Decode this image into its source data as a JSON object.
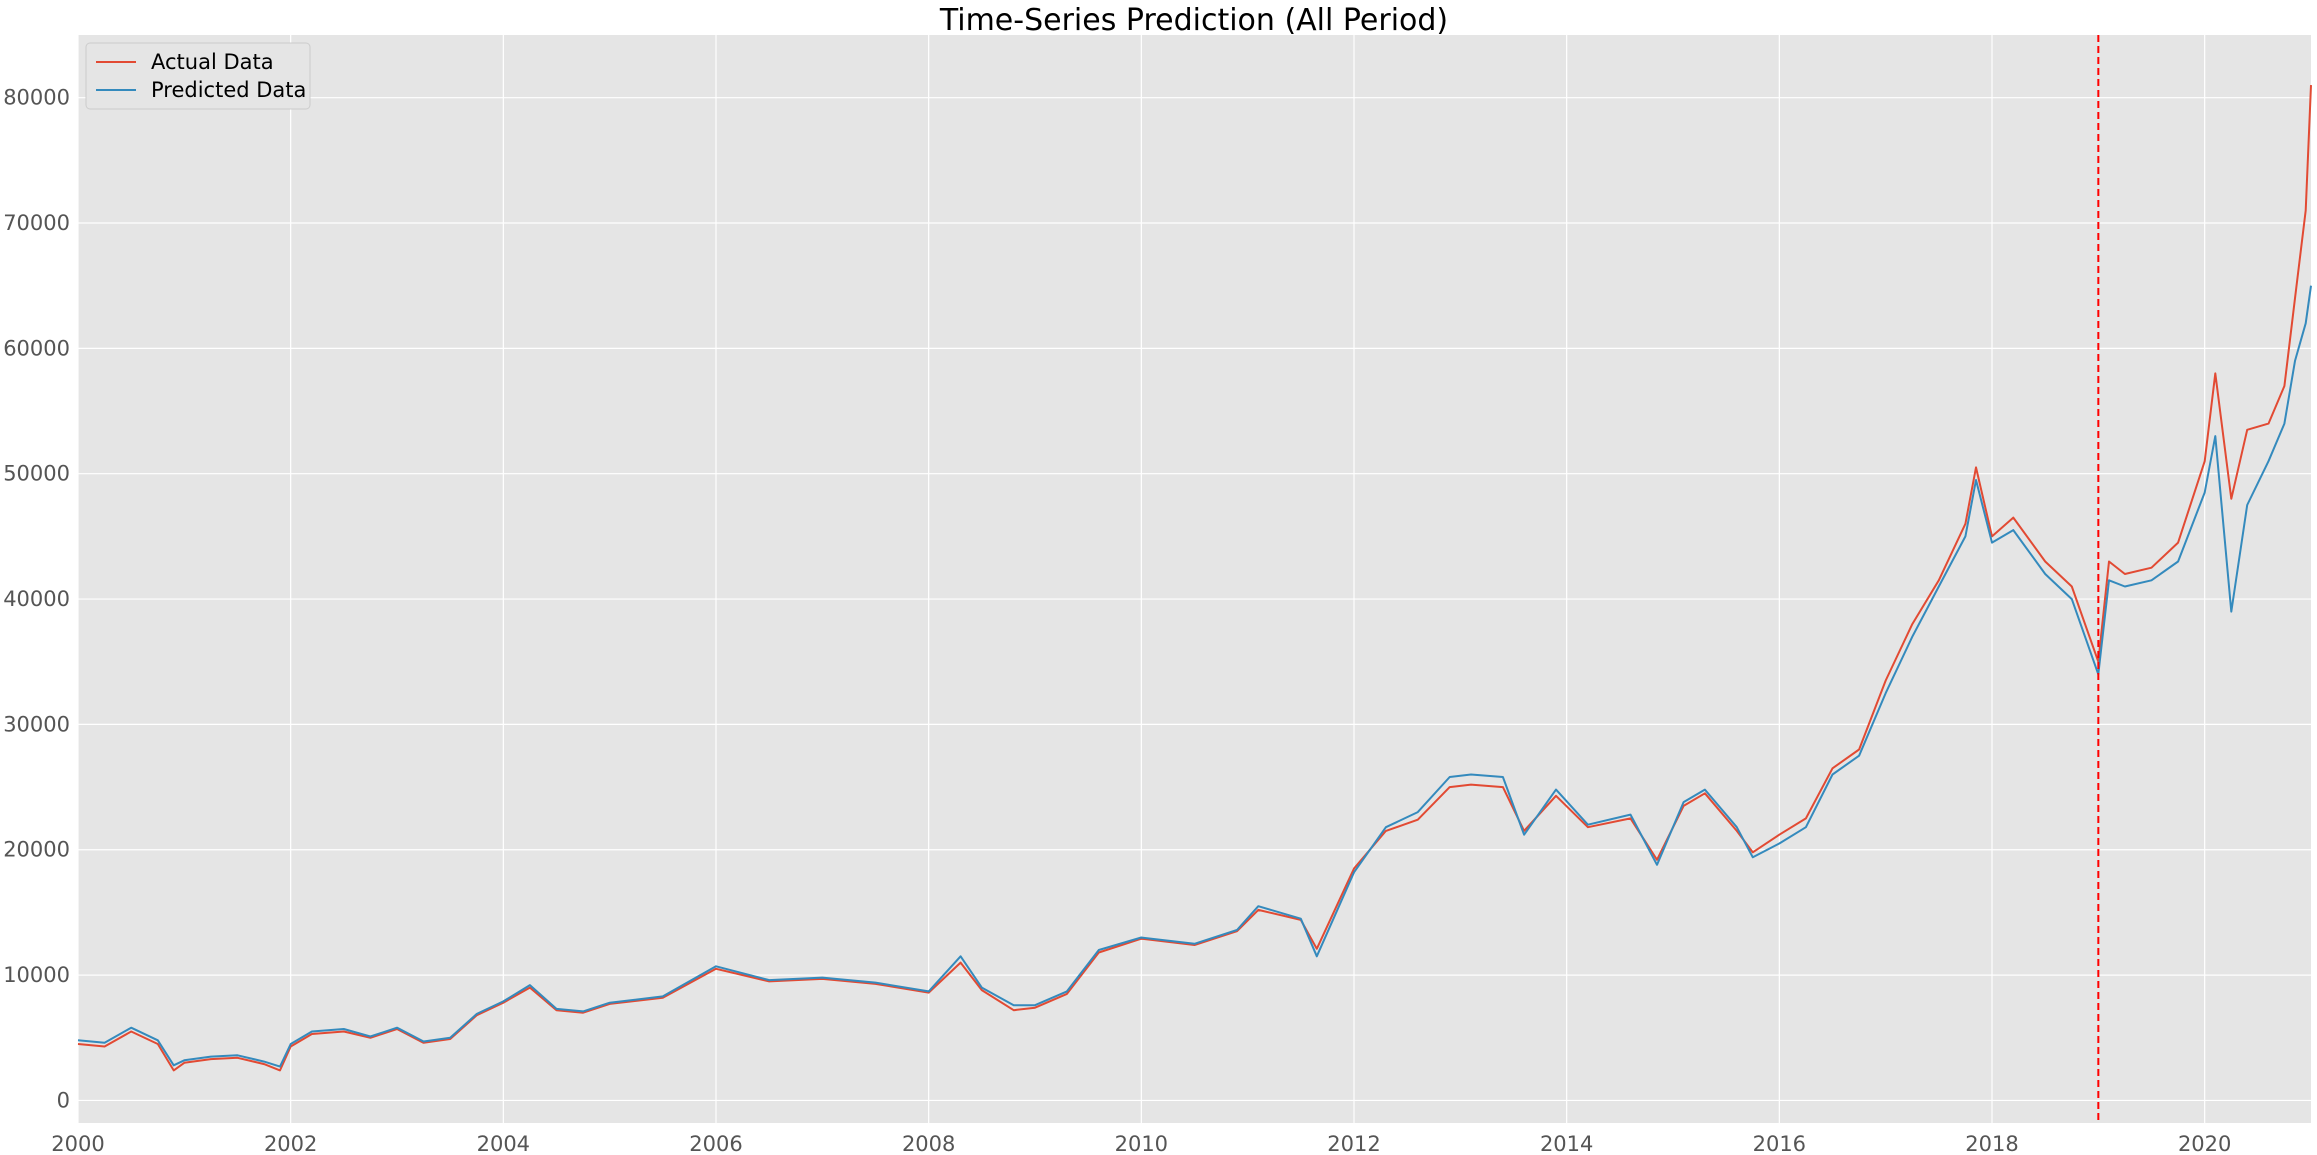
{
  "chart_data": {
    "type": "line",
    "title": "Time-Series Prediction (All Period)",
    "xlabel": "",
    "ylabel": "",
    "xlim": [
      2000,
      2021.0
    ],
    "ylim": [
      -1800,
      85000
    ],
    "x_ticks": [
      2000,
      2002,
      2004,
      2006,
      2008,
      2010,
      2012,
      2014,
      2016,
      2018,
      2020
    ],
    "x_tick_labels": [
      "2000",
      "2002",
      "2004",
      "2006",
      "2008",
      "2010",
      "2012",
      "2014",
      "2016",
      "2018",
      "2020"
    ],
    "y_ticks": [
      0,
      10000,
      20000,
      30000,
      40000,
      50000,
      60000,
      70000,
      80000
    ],
    "y_tick_labels": [
      "0",
      "10000",
      "20000",
      "30000",
      "40000",
      "50000",
      "60000",
      "70000",
      "80000"
    ],
    "grid": true,
    "legend_position": "top-left",
    "split_line": {
      "x": 2019.0,
      "color": "#ff0000",
      "style": "dashed"
    },
    "series": [
      {
        "name": "Actual Data",
        "color": "#e24a33",
        "x": [
          2000.0,
          2000.25,
          2000.5,
          2000.75,
          2000.9,
          2001.0,
          2001.25,
          2001.5,
          2001.75,
          2001.9,
          2002.0,
          2002.2,
          2002.5,
          2002.75,
          2003.0,
          2003.25,
          2003.5,
          2003.75,
          2004.0,
          2004.25,
          2004.5,
          2004.75,
          2005.0,
          2005.5,
          2006.0,
          2006.5,
          2007.0,
          2007.5,
          2008.0,
          2008.3,
          2008.5,
          2008.8,
          2009.0,
          2009.3,
          2009.6,
          2010.0,
          2010.5,
          2010.9,
          2011.1,
          2011.5,
          2011.65,
          2012.0,
          2012.3,
          2012.6,
          2012.9,
          2013.1,
          2013.4,
          2013.6,
          2013.9,
          2014.2,
          2014.6,
          2014.85,
          2015.1,
          2015.3,
          2015.6,
          2015.75,
          2016.0,
          2016.25,
          2016.5,
          2016.75,
          2017.0,
          2017.25,
          2017.5,
          2017.75,
          2017.85,
          2018.0,
          2018.2,
          2018.5,
          2018.75,
          2019.0,
          2019.1,
          2019.25,
          2019.5,
          2019.75,
          2020.0,
          2020.1,
          2020.25,
          2020.4,
          2020.6,
          2020.75,
          2020.85,
          2020.95,
          2021.0
        ],
        "y": [
          4500,
          4300,
          5500,
          4500,
          2400,
          3000,
          3300,
          3400,
          2900,
          2400,
          4300,
          5300,
          5500,
          5000,
          5700,
          4600,
          4900,
          6800,
          7800,
          9000,
          7200,
          7000,
          7700,
          8200,
          10500,
          9500,
          9700,
          9300,
          8600,
          11000,
          8800,
          7200,
          7400,
          8500,
          11800,
          12900,
          12400,
          13500,
          15200,
          14400,
          12100,
          18500,
          21500,
          22400,
          25000,
          25200,
          25000,
          21500,
          24300,
          21800,
          22500,
          19200,
          23500,
          24500,
          21500,
          19800,
          21200,
          22500,
          26500,
          28000,
          33500,
          38000,
          41500,
          46000,
          50500,
          45000,
          46500,
          43000,
          41000,
          35000,
          43000,
          42000,
          42500,
          44500,
          51000,
          58000,
          48000,
          53500,
          54000,
          57000,
          64000,
          71000,
          81000
        ]
      },
      {
        "name": "Predicted Data",
        "color": "#348abd",
        "x": [
          2000.0,
          2000.25,
          2000.5,
          2000.75,
          2000.9,
          2001.0,
          2001.25,
          2001.5,
          2001.75,
          2001.9,
          2002.0,
          2002.2,
          2002.5,
          2002.75,
          2003.0,
          2003.25,
          2003.5,
          2003.75,
          2004.0,
          2004.25,
          2004.5,
          2004.75,
          2005.0,
          2005.5,
          2006.0,
          2006.5,
          2007.0,
          2007.5,
          2008.0,
          2008.3,
          2008.5,
          2008.8,
          2009.0,
          2009.3,
          2009.6,
          2010.0,
          2010.5,
          2010.9,
          2011.1,
          2011.5,
          2011.65,
          2012.0,
          2012.3,
          2012.6,
          2012.9,
          2013.1,
          2013.4,
          2013.6,
          2013.9,
          2014.2,
          2014.6,
          2014.85,
          2015.1,
          2015.3,
          2015.6,
          2015.75,
          2016.0,
          2016.25,
          2016.5,
          2016.75,
          2017.0,
          2017.25,
          2017.5,
          2017.75,
          2017.85,
          2018.0,
          2018.2,
          2018.5,
          2018.75,
          2019.0,
          2019.1,
          2019.25,
          2019.5,
          2019.75,
          2020.0,
          2020.1,
          2020.25,
          2020.4,
          2020.6,
          2020.75,
          2020.85,
          2020.95,
          2021.0
        ],
        "y": [
          4800,
          4600,
          5800,
          4800,
          2800,
          3200,
          3500,
          3600,
          3100,
          2700,
          4500,
          5500,
          5700,
          5100,
          5800,
          4700,
          5000,
          6900,
          7900,
          9200,
          7300,
          7100,
          7800,
          8300,
          10700,
          9600,
          9800,
          9400,
          8700,
          11500,
          9000,
          7600,
          7600,
          8700,
          12000,
          13000,
          12500,
          13600,
          15500,
          14500,
          11500,
          18200,
          21800,
          23000,
          25800,
          26000,
          25800,
          21200,
          24800,
          22000,
          22800,
          18800,
          23800,
          24800,
          21800,
          19400,
          20500,
          21800,
          26000,
          27500,
          32500,
          37000,
          41000,
          45000,
          49500,
          44500,
          45500,
          42000,
          40000,
          34000,
          41500,
          41000,
          41500,
          43000,
          48500,
          53000,
          39000,
          47500,
          51000,
          54000,
          59000,
          62000,
          65000
        ]
      }
    ]
  }
}
